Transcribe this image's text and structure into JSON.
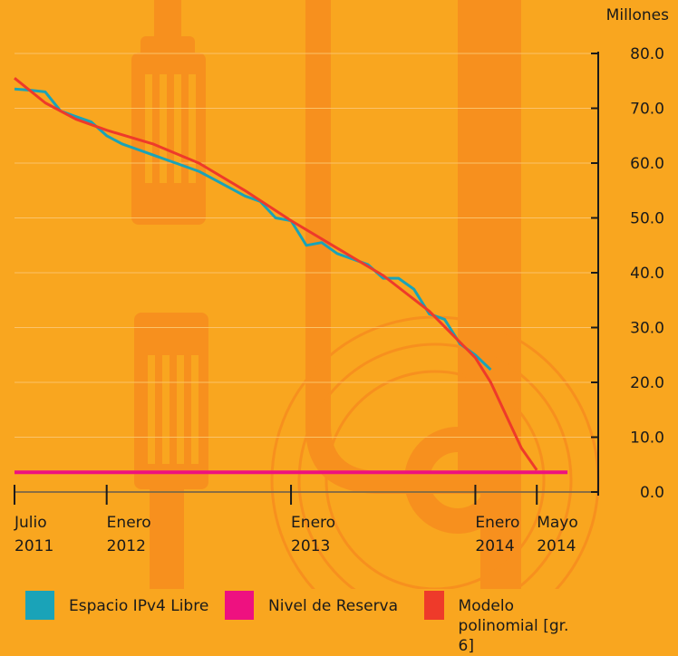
{
  "chart_data": {
    "type": "line",
    "y_label": "Millones",
    "xlim": [
      "2011-07",
      "2014-09"
    ],
    "xticks": [
      {
        "value": "2011-07",
        "label": "Julio 2011"
      },
      {
        "value": "2012-01",
        "label": "Enero 2012"
      },
      {
        "value": "2013-01",
        "label": "Enero 2013"
      },
      {
        "value": "2014-01",
        "label": "Enero 2014"
      },
      {
        "value": "2014-05",
        "label": "Mayo 2014"
      }
    ],
    "ylim": [
      0,
      80
    ],
    "yticks": [
      {
        "value": 0,
        "label": "0.0"
      },
      {
        "value": 10,
        "label": "10.0"
      },
      {
        "value": 20,
        "label": "20.0"
      },
      {
        "value": 30,
        "label": "30.0"
      },
      {
        "value": 40,
        "label": "40.0"
      },
      {
        "value": 50,
        "label": "50.0"
      },
      {
        "value": 60,
        "label": "60.0"
      },
      {
        "value": 70,
        "label": "70.0"
      },
      {
        "value": 80,
        "label": "80.0"
      }
    ],
    "series": [
      {
        "name": "Espacio IPv4 Libre",
        "color": "#1aa3b8",
        "x": [
          "2011-07",
          "2011-08",
          "2011-09",
          "2011-10",
          "2011-11",
          "2011-12",
          "2012-01",
          "2012-02",
          "2012-03",
          "2012-04",
          "2012-05",
          "2012-06",
          "2012-07",
          "2012-08",
          "2012-09",
          "2012-10",
          "2012-11",
          "2012-12",
          "2013-01",
          "2013-02",
          "2013-03",
          "2013-04",
          "2013-05",
          "2013-06",
          "2013-07",
          "2013-08",
          "2013-09",
          "2013-10",
          "2013-11",
          "2013-12",
          "2014-01",
          "2014-02"
        ],
        "values": [
          73.5,
          73.3,
          73,
          69.5,
          68.5,
          67.5,
          65,
          63.5,
          62.5,
          61.5,
          60.5,
          59.5,
          58.5,
          57,
          55.5,
          54,
          53,
          50,
          49.5,
          45,
          45.5,
          43.5,
          42.5,
          41.5,
          39,
          39,
          37,
          32.5,
          31.5,
          27,
          25,
          22.3
        ]
      },
      {
        "name": "Nivel de Reserva",
        "color": "#ee1180",
        "x": [
          "2011-07",
          "2014-07"
        ],
        "values": [
          3.6,
          3.6
        ]
      },
      {
        "name": "Modelo polinomial [gr. 6]",
        "color": "#ee3a2a",
        "x": [
          "2011-07",
          "2011-09",
          "2011-11",
          "2012-01",
          "2012-04",
          "2012-07",
          "2012-10",
          "2013-01",
          "2013-04",
          "2013-07",
          "2013-10",
          "2014-01",
          "2014-02",
          "2014-03",
          "2014-04",
          "2014-05"
        ],
        "values": [
          75.5,
          71,
          68,
          66,
          63.5,
          60,
          55,
          49.5,
          44.5,
          39.5,
          33,
          24.5,
          20,
          14,
          8,
          4
        ]
      }
    ]
  }
}
